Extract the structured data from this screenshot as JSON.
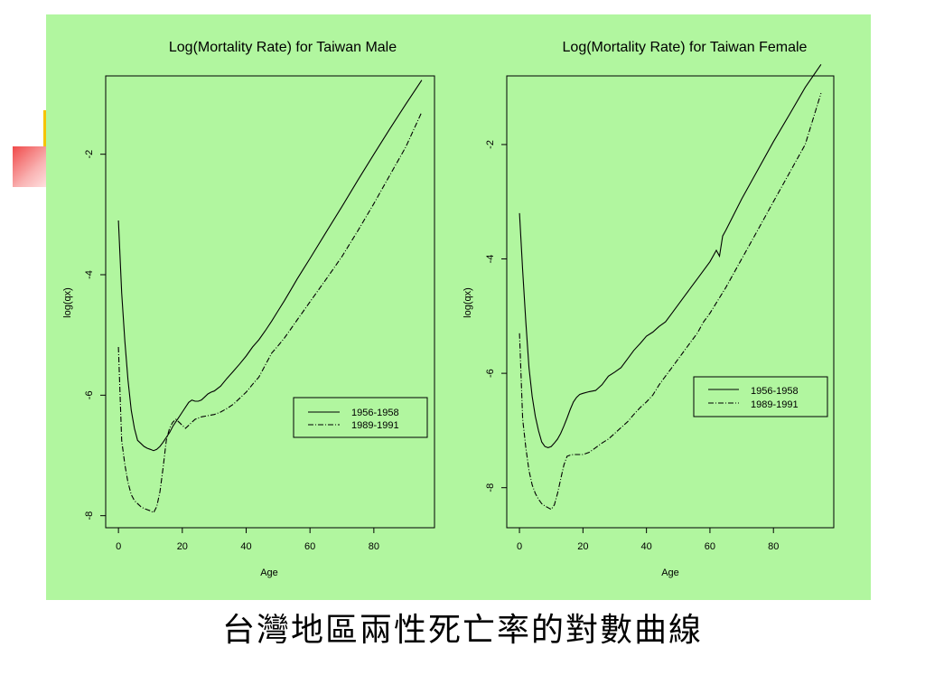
{
  "caption": "台灣地區兩性死亡率的對數曲線",
  "chart_data": [
    {
      "type": "line",
      "title": "Log(Mortality Rate) for Taiwan Male",
      "xlabel": "Age",
      "ylabel": "log(qx)",
      "xlim": [
        -4,
        99
      ],
      "ylim": [
        -8.2,
        -0.7
      ],
      "xticks": [
        0,
        20,
        40,
        60,
        80
      ],
      "yticks": [
        -2,
        -4,
        -6,
        -8
      ],
      "grid": false,
      "legend_placement": "center-right",
      "series": [
        {
          "name": "1956-1958",
          "style": "solid",
          "x": [
            0,
            1,
            2,
            3,
            4,
            5,
            6,
            7,
            8,
            9,
            10,
            11,
            12,
            13,
            14,
            15,
            16,
            17,
            18,
            19,
            20,
            21,
            22,
            23,
            24,
            25,
            26,
            27,
            28,
            29,
            30,
            32,
            34,
            36,
            38,
            40,
            42,
            44,
            46,
            48,
            50,
            52,
            54,
            56,
            58,
            60,
            65,
            70,
            75,
            80,
            85,
            90,
            95
          ],
          "y": [
            -3.1,
            -4.3,
            -5.1,
            -5.75,
            -6.25,
            -6.55,
            -6.75,
            -6.8,
            -6.85,
            -6.88,
            -6.9,
            -6.92,
            -6.9,
            -6.85,
            -6.78,
            -6.7,
            -6.62,
            -6.52,
            -6.44,
            -6.36,
            -6.28,
            -6.2,
            -6.12,
            -6.08,
            -6.1,
            -6.1,
            -6.08,
            -6.03,
            -5.98,
            -5.95,
            -5.93,
            -5.85,
            -5.72,
            -5.6,
            -5.48,
            -5.35,
            -5.2,
            -5.08,
            -4.93,
            -4.77,
            -4.6,
            -4.43,
            -4.25,
            -4.07,
            -3.9,
            -3.73,
            -3.3,
            -2.87,
            -2.43,
            -2.0,
            -1.58,
            -1.17,
            -0.77
          ]
        },
        {
          "name": "1989-1991",
          "style": "dashdot",
          "x": [
            0,
            1,
            2,
            3,
            4,
            5,
            6,
            7,
            8,
            9,
            10,
            11,
            12,
            13,
            14,
            15,
            16,
            17,
            18,
            19,
            20,
            21,
            22,
            23,
            24,
            25,
            26,
            28,
            30,
            32,
            34,
            36,
            38,
            40,
            42,
            44,
            46,
            48,
            50,
            52,
            54,
            56,
            58,
            60,
            65,
            70,
            75,
            80,
            85,
            90,
            95
          ],
          "y": [
            -5.2,
            -6.75,
            -7.15,
            -7.45,
            -7.65,
            -7.75,
            -7.8,
            -7.85,
            -7.88,
            -7.9,
            -7.92,
            -7.95,
            -7.85,
            -7.6,
            -7.2,
            -6.75,
            -6.55,
            -6.45,
            -6.4,
            -6.45,
            -6.5,
            -6.55,
            -6.5,
            -6.45,
            -6.4,
            -6.38,
            -6.36,
            -6.34,
            -6.32,
            -6.28,
            -6.22,
            -6.15,
            -6.05,
            -5.95,
            -5.82,
            -5.7,
            -5.5,
            -5.3,
            -5.18,
            -5.05,
            -4.9,
            -4.75,
            -4.6,
            -4.45,
            -4.08,
            -3.7,
            -3.27,
            -2.82,
            -2.35,
            -1.88,
            -1.3
          ]
        }
      ]
    },
    {
      "type": "line",
      "title": "Log(Mortality Rate) for Taiwan Female",
      "xlabel": "Age",
      "ylabel": "log(qx)",
      "xlim": [
        -4,
        99
      ],
      "ylim": [
        -8.7,
        -0.8
      ],
      "xticks": [
        0,
        20,
        40,
        60,
        80
      ],
      "yticks": [
        -2,
        -4,
        -6,
        -8
      ],
      "grid": false,
      "legend_placement": "center-right",
      "series": [
        {
          "name": "1956-1958",
          "style": "solid",
          "x": [
            0,
            1,
            2,
            3,
            4,
            5,
            6,
            7,
            8,
            9,
            10,
            11,
            12,
            13,
            14,
            15,
            16,
            17,
            18,
            19,
            20,
            22,
            24,
            26,
            28,
            30,
            32,
            34,
            36,
            38,
            40,
            42,
            44,
            46,
            48,
            50,
            52,
            54,
            56,
            58,
            60,
            62,
            63,
            64,
            65,
            70,
            75,
            80,
            85,
            90,
            95
          ],
          "y": [
            -3.2,
            -4.2,
            -5.1,
            -5.9,
            -6.4,
            -6.75,
            -7.0,
            -7.2,
            -7.28,
            -7.3,
            -7.28,
            -7.22,
            -7.15,
            -7.05,
            -6.92,
            -6.78,
            -6.63,
            -6.5,
            -6.42,
            -6.37,
            -6.35,
            -6.32,
            -6.3,
            -6.2,
            -6.05,
            -5.98,
            -5.9,
            -5.75,
            -5.6,
            -5.48,
            -5.35,
            -5.28,
            -5.18,
            -5.1,
            -4.95,
            -4.8,
            -4.65,
            -4.5,
            -4.35,
            -4.2,
            -4.05,
            -3.85,
            -3.95,
            -3.6,
            -3.5,
            -2.95,
            -2.45,
            -1.95,
            -1.48,
            -1.0,
            -0.6
          ]
        },
        {
          "name": "1989-1991",
          "style": "dashdot",
          "x": [
            0,
            1,
            2,
            3,
            4,
            5,
            6,
            7,
            8,
            9,
            10,
            11,
            12,
            13,
            14,
            15,
            16,
            17,
            18,
            20,
            22,
            24,
            26,
            28,
            30,
            32,
            34,
            36,
            38,
            40,
            42,
            44,
            46,
            48,
            50,
            52,
            54,
            56,
            58,
            60,
            65,
            70,
            75,
            80,
            85,
            90,
            95
          ],
          "y": [
            -5.3,
            -6.8,
            -7.3,
            -7.7,
            -7.95,
            -8.1,
            -8.2,
            -8.28,
            -8.32,
            -8.35,
            -8.38,
            -8.3,
            -8.1,
            -7.85,
            -7.6,
            -7.45,
            -7.43,
            -7.42,
            -7.42,
            -7.42,
            -7.38,
            -7.3,
            -7.22,
            -7.15,
            -7.05,
            -6.95,
            -6.85,
            -6.72,
            -6.6,
            -6.5,
            -6.38,
            -6.2,
            -6.05,
            -5.9,
            -5.75,
            -5.6,
            -5.45,
            -5.3,
            -5.1,
            -4.95,
            -4.5,
            -4.0,
            -3.5,
            -3.0,
            -2.5,
            -2.0,
            -1.1
          ]
        }
      ]
    }
  ]
}
